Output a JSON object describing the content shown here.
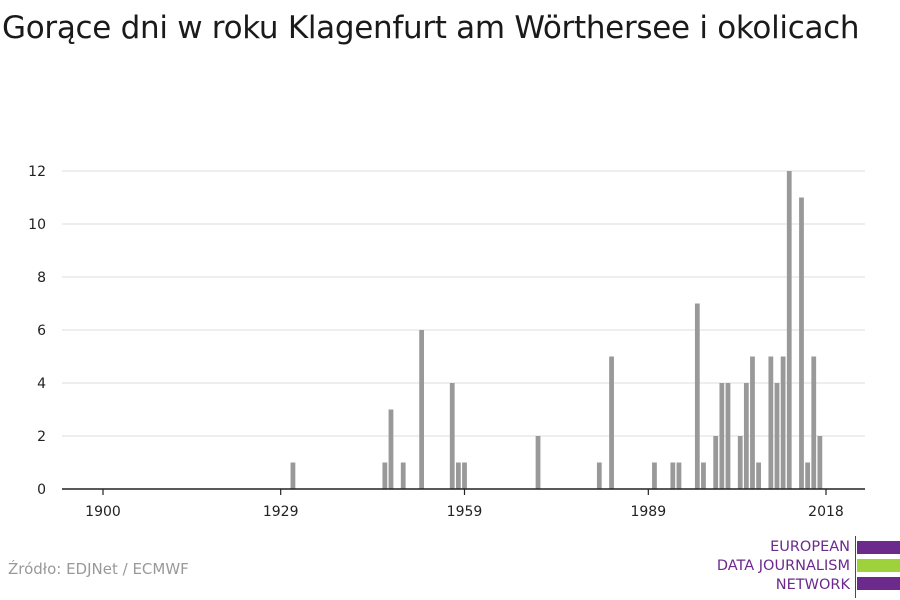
{
  "title": "Gorące dni w roku Klagenfurt am Wörthersee i okolicach",
  "source": "Źródło: EDJNet / ECMWF",
  "logo": {
    "lines": [
      "EUROPEAN",
      "DATA JOURNALISM",
      "NETWORK"
    ],
    "colors": {
      "purple": "#6b2a8c",
      "green": "#9ed13a"
    }
  },
  "chart_data": {
    "type": "bar",
    "bar_color": "#999999",
    "grid": true,
    "x_ticks": [
      1900,
      1929,
      1959,
      1989,
      2018
    ],
    "y_ticks": [
      0,
      2,
      4,
      6,
      8,
      10,
      12
    ],
    "xlim": [
      1894,
      2024
    ],
    "ylim": [
      0,
      12
    ],
    "points": [
      {
        "year": 1931,
        "value": 1
      },
      {
        "year": 1946,
        "value": 1
      },
      {
        "year": 1947,
        "value": 3
      },
      {
        "year": 1949,
        "value": 1
      },
      {
        "year": 1952,
        "value": 6
      },
      {
        "year": 1957,
        "value": 4
      },
      {
        "year": 1958,
        "value": 1
      },
      {
        "year": 1959,
        "value": 1
      },
      {
        "year": 1971,
        "value": 2
      },
      {
        "year": 1981,
        "value": 1
      },
      {
        "year": 1983,
        "value": 5
      },
      {
        "year": 1990,
        "value": 1
      },
      {
        "year": 1993,
        "value": 1
      },
      {
        "year": 1994,
        "value": 1
      },
      {
        "year": 1997,
        "value": 7
      },
      {
        "year": 1998,
        "value": 1
      },
      {
        "year": 2000,
        "value": 2
      },
      {
        "year": 2001,
        "value": 4
      },
      {
        "year": 2002,
        "value": 4
      },
      {
        "year": 2004,
        "value": 2
      },
      {
        "year": 2005,
        "value": 4
      },
      {
        "year": 2006,
        "value": 5
      },
      {
        "year": 2007,
        "value": 1
      },
      {
        "year": 2009,
        "value": 5
      },
      {
        "year": 2010,
        "value": 4
      },
      {
        "year": 2011,
        "value": 5
      },
      {
        "year": 2012,
        "value": 12
      },
      {
        "year": 2014,
        "value": 11
      },
      {
        "year": 2015,
        "value": 1
      },
      {
        "year": 2016,
        "value": 5
      },
      {
        "year": 2017,
        "value": 2
      }
    ]
  }
}
